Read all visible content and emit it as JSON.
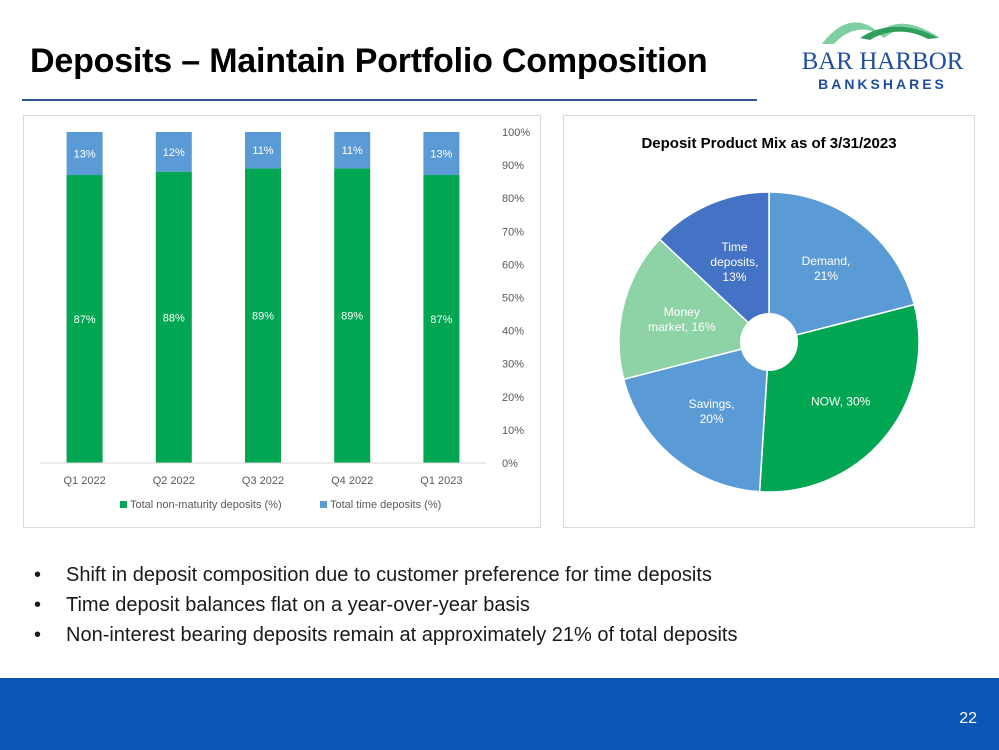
{
  "slide": {
    "title": "Deposits – Maintain Portfolio Composition",
    "page_number": "22"
  },
  "logo": {
    "line1": "BAR HARBOR",
    "line2": "BANKSHARES"
  },
  "colors": {
    "green": "#00a651",
    "light_blue": "#5b9bd5",
    "mint": "#8ed3a5",
    "dark_blue": "#4472c4",
    "footer": "#0b55b5"
  },
  "bullets": [
    "Shift in deposit composition due to customer preference for time deposits",
    "Time deposit balances flat on a year-over-year basis",
    "Non-interest bearing deposits remain at approximately 21% of total deposits"
  ],
  "chart_data": [
    {
      "type": "bar",
      "stacked": true,
      "categories": [
        "Q1 2022",
        "Q2 2022",
        "Q3 2022",
        "Q4 2022",
        "Q1 2023"
      ],
      "series": [
        {
          "name": "Total non-maturity deposits (%)",
          "values": [
            87,
            88,
            89,
            89,
            87
          ],
          "labels": [
            "87%",
            "88%",
            "89%",
            "89%",
            "87%"
          ],
          "color": "#00a651"
        },
        {
          "name": "Total time deposits (%)",
          "values": [
            13,
            12,
            11,
            11,
            13
          ],
          "labels": [
            "13%",
            "12%",
            "11%",
            "11%",
            "13%"
          ],
          "color": "#5b9bd5"
        }
      ],
      "yaxis_side": "right",
      "ylim": [
        0,
        100
      ],
      "yticks": [
        "0%",
        "10%",
        "20%",
        "30%",
        "40%",
        "50%",
        "60%",
        "70%",
        "80%",
        "90%",
        "100%"
      ],
      "legend_position": "bottom",
      "grid": false,
      "title": ""
    },
    {
      "type": "pie",
      "donut": true,
      "title": "Deposit Product Mix as of 3/31/2023",
      "slices": [
        {
          "name": "Demand",
          "value": 21,
          "label": [
            "Demand,",
            "21%"
          ],
          "color": "#5b9bd5"
        },
        {
          "name": "NOW",
          "value": 30,
          "label": [
            "NOW, 30%"
          ],
          "color": "#00a651"
        },
        {
          "name": "Savings",
          "value": 20,
          "label": [
            "Savings,",
            "20%"
          ],
          "color": "#5b9bd5"
        },
        {
          "name": "Money market",
          "value": 16,
          "label": [
            "Money",
            "market, 16%"
          ],
          "color": "#8ed3a5"
        },
        {
          "name": "Time deposits",
          "value": 13,
          "label": [
            "Time",
            "deposits,",
            "13%"
          ],
          "color": "#4472c4"
        }
      ]
    }
  ]
}
